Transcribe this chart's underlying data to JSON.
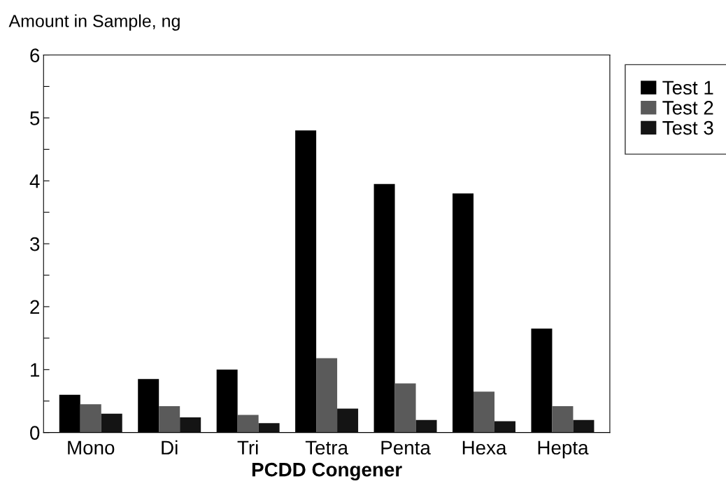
{
  "chart_data": {
    "type": "bar",
    "ylabel": "Amount in Sample, ng",
    "xlabel": "PCDD Congener",
    "categories": [
      "Mono",
      "Di",
      "Tri",
      "Tetra",
      "Penta",
      "Hexa",
      "Hepta"
    ],
    "series": [
      {
        "name": "Test 1",
        "color": "#000000",
        "values": [
          0.6,
          0.85,
          1.0,
          4.8,
          3.95,
          3.8,
          1.65
        ]
      },
      {
        "name": "Test 2",
        "color": "#5a5a5a",
        "values": [
          0.45,
          0.42,
          0.28,
          1.18,
          0.78,
          0.65,
          0.42
        ]
      },
      {
        "name": "Test 3",
        "color": "#141414",
        "values": [
          0.3,
          0.24,
          0.15,
          0.38,
          0.2,
          0.18,
          0.2
        ]
      }
    ],
    "ylim": [
      0,
      6
    ],
    "yticks": [
      0,
      {
        "value": 0.5,
        "label": null
      },
      1,
      {
        "value": 1.5,
        "label": null
      },
      2,
      {
        "value": 2.5,
        "label": null
      },
      3,
      {
        "value": 3.5,
        "label": null
      },
      4,
      {
        "value": 4.5,
        "label": null
      },
      5,
      {
        "value": 5.5,
        "label": null
      },
      6
    ],
    "legend": "top right",
    "grid": false
  }
}
